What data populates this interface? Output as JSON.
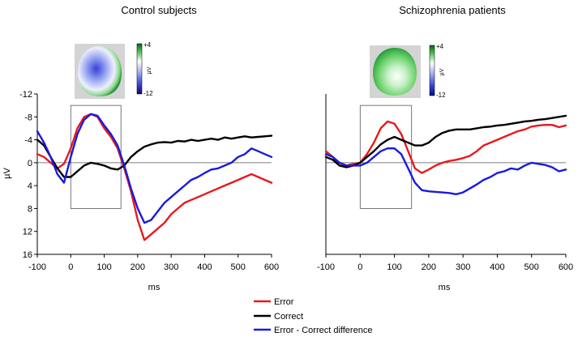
{
  "chart_data": [
    {
      "type": "line",
      "title": "Control subjects",
      "xlabel": "ms",
      "ylabel": "µV",
      "xlim": [
        -100,
        600
      ],
      "ylim": [
        16,
        -12
      ],
      "y_inverted": true,
      "xticks": [
        -100,
        0,
        100,
        200,
        300,
        400,
        500,
        600
      ],
      "yticks": [
        -12,
        -8,
        -4,
        0,
        4,
        8,
        12,
        16
      ],
      "highlight_window": {
        "x": [
          0,
          150
        ],
        "y": [
          -10,
          8
        ]
      },
      "scalp_map": {
        "max_label": "+4",
        "min_label": "-12",
        "unit": "µV"
      },
      "series": [
        {
          "name": "Error",
          "color": "#e8191e",
          "x": [
            -100,
            -80,
            -60,
            -40,
            -20,
            0,
            20,
            40,
            60,
            80,
            100,
            120,
            140,
            160,
            180,
            200,
            220,
            240,
            260,
            280,
            300,
            320,
            340,
            360,
            380,
            400,
            420,
            440,
            460,
            480,
            500,
            520,
            540,
            560,
            580,
            600
          ],
          "y": [
            -1.5,
            -1,
            0,
            1,
            0.2,
            -2.5,
            -6,
            -8,
            -8.5,
            -8,
            -6,
            -4.5,
            -2.5,
            1,
            5,
            10,
            13.5,
            12.5,
            11.5,
            10.5,
            9,
            8,
            7,
            6.5,
            6,
            5.5,
            5,
            4.5,
            4,
            3.5,
            3,
            2.5,
            2,
            2.5,
            3,
            3.5
          ]
        },
        {
          "name": "Correct",
          "color": "#000000",
          "x": [
            -100,
            -80,
            -60,
            -40,
            -20,
            0,
            20,
            40,
            60,
            80,
            100,
            120,
            140,
            160,
            180,
            200,
            220,
            240,
            260,
            280,
            300,
            320,
            340,
            360,
            380,
            400,
            420,
            440,
            460,
            480,
            500,
            520,
            540,
            560,
            580,
            600
          ],
          "y": [
            -4,
            -3,
            -1,
            1,
            2.5,
            2.5,
            1.5,
            0.5,
            0,
            0.2,
            0.5,
            1,
            1.2,
            0.5,
            -1,
            -2,
            -2.8,
            -3.2,
            -3.5,
            -3.6,
            -3.5,
            -3.8,
            -3.7,
            -4,
            -3.8,
            -4,
            -4.2,
            -4,
            -4.4,
            -4.2,
            -4.4,
            -4.6,
            -4.4,
            -4.5,
            -4.6,
            -4.7
          ]
        },
        {
          "name": "Error - Correct difference",
          "color": "#1a1adf",
          "x": [
            -100,
            -80,
            -60,
            -40,
            -20,
            0,
            20,
            40,
            60,
            80,
            100,
            120,
            140,
            160,
            180,
            200,
            220,
            240,
            260,
            280,
            300,
            320,
            340,
            360,
            380,
            400,
            420,
            440,
            460,
            480,
            500,
            520,
            540,
            560,
            580,
            600
          ],
          "y": [
            -5.5,
            -3.5,
            -1,
            2,
            3.5,
            -1,
            -5,
            -7.5,
            -8.5,
            -8.2,
            -6.5,
            -5,
            -3,
            0.5,
            4.5,
            8,
            10.5,
            10,
            8.5,
            7,
            6,
            5,
            4,
            3,
            2.5,
            1.8,
            1.2,
            1,
            0.5,
            0,
            -1,
            -1.5,
            -2.5,
            -2,
            -1.5,
            -1
          ]
        }
      ]
    },
    {
      "type": "line",
      "title": "Schizophrenia patients",
      "xlabel": "ms",
      "ylabel": "",
      "xlim": [
        -100,
        600
      ],
      "ylim": [
        16,
        -12
      ],
      "y_inverted": true,
      "xticks": [
        -100,
        0,
        100,
        200,
        300,
        400,
        500,
        600
      ],
      "yticks": [
        -12,
        -8,
        -4,
        0,
        4,
        8,
        12,
        16
      ],
      "highlight_window": {
        "x": [
          0,
          150
        ],
        "y": [
          -10,
          8
        ]
      },
      "scalp_map": {
        "max_label": "+4",
        "min_label": "-12",
        "unit": "µV"
      },
      "series": [
        {
          "name": "Error",
          "color": "#e8191e",
          "x": [
            -100,
            -80,
            -60,
            -40,
            -20,
            0,
            20,
            40,
            60,
            80,
            100,
            120,
            140,
            160,
            180,
            200,
            220,
            240,
            260,
            280,
            300,
            320,
            340,
            360,
            380,
            400,
            420,
            440,
            460,
            480,
            500,
            520,
            540,
            560,
            580,
            600
          ],
          "y": [
            -2,
            -1,
            0.5,
            0.5,
            0.2,
            0,
            -1.5,
            -3.5,
            -6,
            -7.2,
            -6.8,
            -5,
            -2,
            1,
            1.8,
            1.2,
            0.5,
            0,
            -0.3,
            -0.5,
            -0.8,
            -1.2,
            -2,
            -3,
            -3.5,
            -4,
            -4.5,
            -5,
            -5.5,
            -5.8,
            -6.3,
            -6.5,
            -6.6,
            -6.6,
            -6.2,
            -6.5
          ]
        },
        {
          "name": "Correct",
          "color": "#000000",
          "x": [
            -100,
            -80,
            -60,
            -40,
            -20,
            0,
            20,
            40,
            60,
            80,
            100,
            120,
            140,
            160,
            180,
            200,
            220,
            240,
            260,
            280,
            300,
            320,
            340,
            360,
            380,
            400,
            420,
            440,
            460,
            480,
            500,
            520,
            540,
            560,
            580,
            600
          ],
          "y": [
            -1,
            -0.5,
            0.5,
            0.8,
            0.5,
            0,
            -1,
            -2,
            -3.2,
            -4,
            -4.5,
            -4,
            -3.5,
            -3,
            -3,
            -3.5,
            -4.5,
            -5.2,
            -5.6,
            -5.8,
            -5.8,
            -5.8,
            -6,
            -6.2,
            -6.3,
            -6.5,
            -6.6,
            -6.8,
            -7,
            -7.2,
            -7.3,
            -7.5,
            -7.6,
            -7.8,
            -8,
            -8.2
          ]
        },
        {
          "name": "Error - Correct difference",
          "color": "#1a1adf",
          "x": [
            -100,
            -80,
            -60,
            -40,
            -20,
            0,
            20,
            40,
            60,
            80,
            100,
            120,
            140,
            160,
            180,
            200,
            220,
            240,
            260,
            280,
            300,
            320,
            340,
            360,
            380,
            400,
            420,
            440,
            460,
            480,
            500,
            520,
            540,
            560,
            580,
            600
          ],
          "y": [
            -1.5,
            -1,
            0,
            0.5,
            0.5,
            0.5,
            0,
            -1,
            -2,
            -2.5,
            -2.5,
            -1.5,
            1,
            3.5,
            4.8,
            5,
            5.1,
            5.2,
            5.3,
            5.5,
            5.2,
            4.5,
            3.8,
            3,
            2.5,
            1.8,
            1.5,
            1,
            1.2,
            0.5,
            0,
            0.2,
            0.4,
            0.8,
            1.5,
            1.2
          ]
        }
      ]
    }
  ],
  "legend": {
    "items": [
      "Error",
      "Correct",
      "Error - Correct difference"
    ]
  }
}
